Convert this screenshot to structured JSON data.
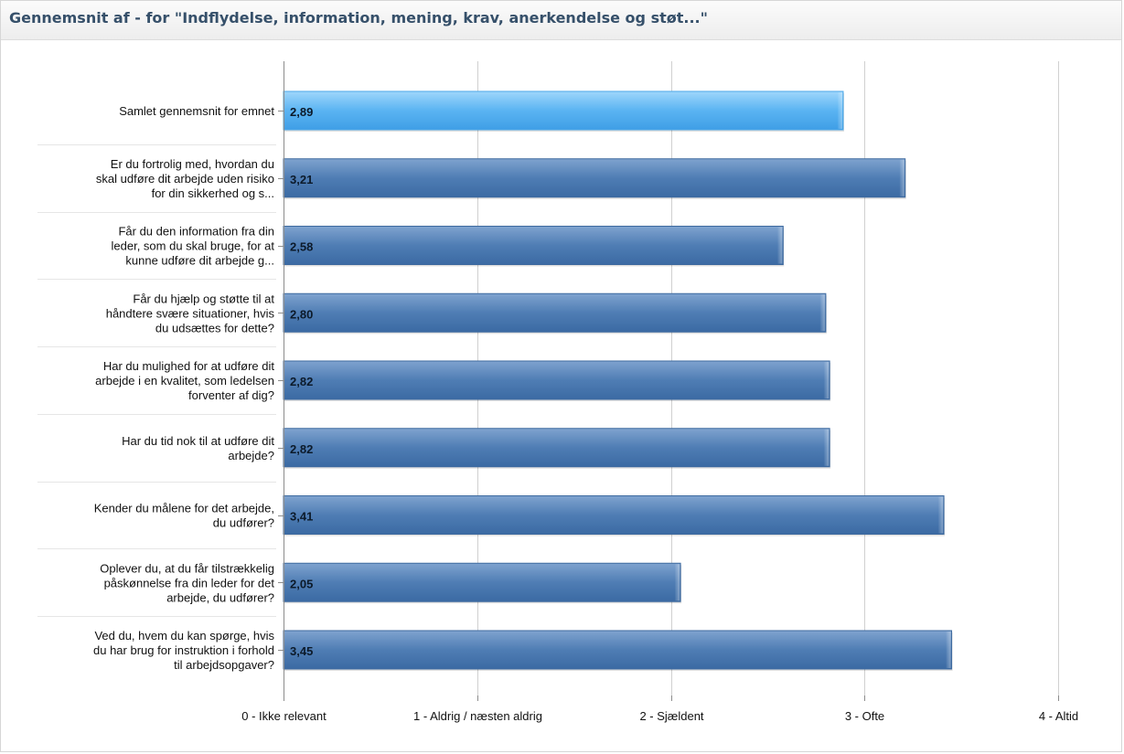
{
  "header": {
    "title": "Gennemsnit af - for \"Indflydelse, information, mening, krav, anerkendelse og støt...\""
  },
  "colors": {
    "bar_highlight": "#5ab4f2",
    "bar_default": "#4f7db4",
    "grid": "#d0d0d0",
    "axis": "#8c8c8c"
  },
  "chart_data": {
    "type": "bar",
    "orientation": "horizontal",
    "title": "",
    "xlabel": "",
    "ylabel": "",
    "xlim": [
      0,
      4
    ],
    "grid": true,
    "ticks": [
      {
        "value": 0,
        "label": "0 - Ikke relevant"
      },
      {
        "value": 1,
        "label": "1 - Aldrig / næsten aldrig"
      },
      {
        "value": 2,
        "label": "2 - Sjældent"
      },
      {
        "value": 3,
        "label": "3 - Ofte"
      },
      {
        "value": 4,
        "label": "4 - Altid"
      }
    ],
    "categories": [
      [
        "Samlet gennemsnit for emnet"
      ],
      [
        "Er du fortrolig med, hvordan du",
        "skal udføre dit arbejde uden risiko",
        "for din sikkerhed og s..."
      ],
      [
        "Får du den information fra din",
        "leder, som du skal bruge, for at",
        "kunne udføre dit arbejde g..."
      ],
      [
        "Får du hjælp og støtte til at",
        "håndtere svære situationer, hvis",
        "du udsættes for dette?"
      ],
      [
        "Har du mulighed for at udføre dit",
        "arbejde i en kvalitet, som ledelsen",
        "forventer af dig?"
      ],
      [
        "Har du tid nok til at udføre dit",
        "arbejde?"
      ],
      [
        "Kender du målene for det arbejde,",
        "du udfører?"
      ],
      [
        "Oplever du, at du får tilstrækkelig",
        "påskønnelse fra din leder for det",
        "arbejde, du udfører?"
      ],
      [
        "Ved du, hvem du kan spørge, hvis",
        "du har brug for instruktion i forhold",
        "til arbejdsopgaver?"
      ]
    ],
    "values": [
      2.89,
      3.21,
      2.58,
      2.8,
      2.82,
      2.82,
      3.41,
      2.05,
      3.45
    ],
    "value_labels": [
      "2,89",
      "3,21",
      "2,58",
      "2,80",
      "2,82",
      "2,82",
      "3,41",
      "2,05",
      "3,45"
    ],
    "highlight_index": 0
  }
}
